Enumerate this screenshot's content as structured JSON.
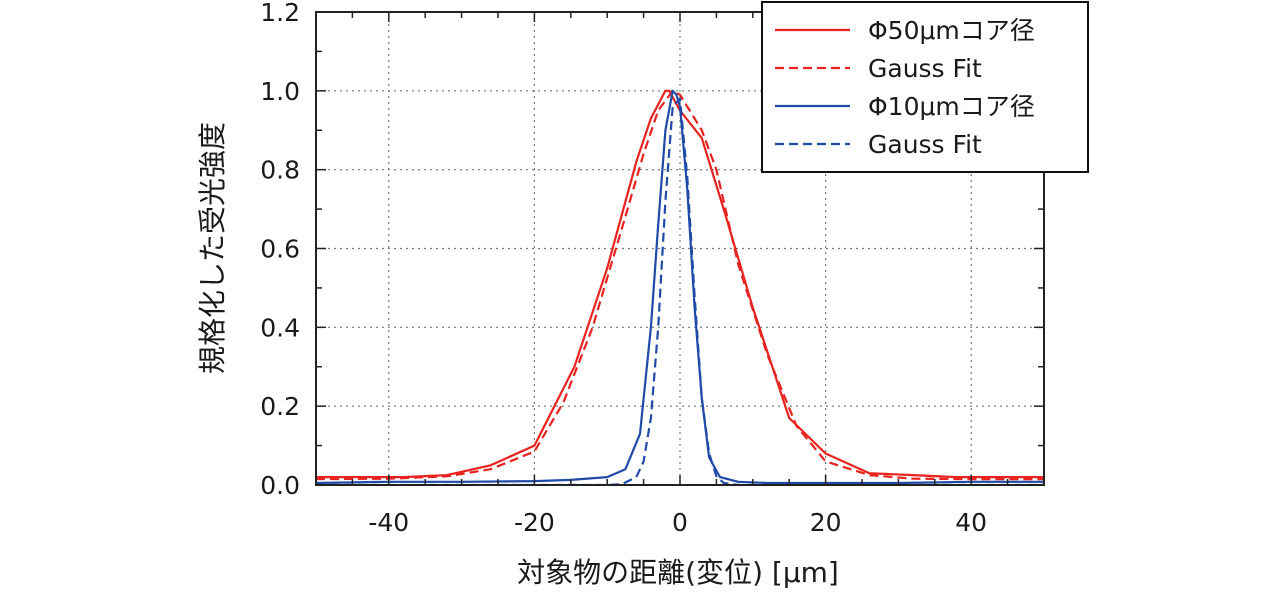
{
  "chart_data": {
    "type": "line",
    "title": "",
    "xlabel": "対象物の距離(変位) [μm]",
    "ylabel": "規格化した受光強度",
    "xlim": [
      -50,
      50
    ],
    "ylim": [
      0,
      1.2
    ],
    "xticks": [
      -40,
      -20,
      0,
      20,
      40
    ],
    "yticks": [
      0.0,
      0.2,
      0.4,
      0.6,
      0.8,
      1.0,
      1.2
    ],
    "x_tick_labels": [
      "-40",
      "-20",
      "0",
      "20",
      "40"
    ],
    "y_tick_labels": [
      "0.0",
      "0.2",
      "0.4",
      "0.6",
      "0.8",
      "1.0",
      "1.2"
    ],
    "grid": true,
    "legend_position": "top-right",
    "series": [
      {
        "name": "Φ50μmコア径",
        "color": "#e8231f",
        "dash": "solid",
        "x": [
          -50,
          -44,
          -38,
          -32,
          -26,
          -20,
          -14.5,
          -10,
          -6,
          -4,
          -2,
          -1.5,
          0,
          3,
          6,
          10,
          15,
          20,
          26,
          32,
          38,
          44,
          50
        ],
        "y": [
          0.02,
          0.02,
          0.02,
          0.025,
          0.05,
          0.1,
          0.3,
          0.55,
          0.82,
          0.93,
          1.0,
          1.0,
          0.95,
          0.88,
          0.7,
          0.45,
          0.17,
          0.08,
          0.03,
          0.025,
          0.02,
          0.02,
          0.02
        ]
      },
      {
        "name": "Gauss Fit",
        "color": "#e8231f",
        "dash": "dashed",
        "x": [
          -50,
          -40,
          -32,
          -26,
          -20,
          -16,
          -12,
          -8,
          -5,
          -3,
          -1,
          0,
          1,
          3,
          5,
          8,
          12,
          16,
          20,
          26,
          32,
          40,
          50
        ],
        "y": [
          0.015,
          0.016,
          0.022,
          0.04,
          0.085,
          0.21,
          0.4,
          0.65,
          0.84,
          0.95,
          1.0,
          0.99,
          0.96,
          0.9,
          0.8,
          0.56,
          0.33,
          0.15,
          0.06,
          0.025,
          0.016,
          0.015,
          0.015
        ]
      },
      {
        "name": "Φ10μmコア径",
        "color": "#1f4aa8",
        "dash": "solid",
        "x": [
          -50,
          -40,
          -30,
          -20,
          -15,
          -10,
          -7.5,
          -5.5,
          -4,
          -3,
          -2,
          -1,
          -0.5,
          0,
          1,
          2,
          3,
          4,
          5.5,
          8,
          12,
          20,
          30,
          40,
          50
        ],
        "y": [
          0.005,
          0.008,
          0.008,
          0.01,
          0.013,
          0.02,
          0.04,
          0.13,
          0.4,
          0.66,
          0.9,
          1.0,
          0.99,
          0.96,
          0.75,
          0.45,
          0.22,
          0.07,
          0.02,
          0.008,
          0.005,
          0.005,
          0.005,
          0.008,
          0.008
        ]
      },
      {
        "name": "Gauss Fit",
        "color": "#1f4aa8",
        "dash": "dashed",
        "x": [
          -50,
          -10,
          -8,
          -6,
          -5,
          -4,
          -3,
          -2,
          -1,
          0,
          1,
          2,
          3,
          4,
          5,
          6,
          8,
          50
        ],
        "y": [
          0.0,
          0.0,
          0.002,
          0.02,
          0.06,
          0.17,
          0.4,
          0.72,
          0.96,
          0.98,
          0.78,
          0.48,
          0.22,
          0.08,
          0.022,
          0.005,
          0.0,
          0.0
        ]
      }
    ]
  }
}
